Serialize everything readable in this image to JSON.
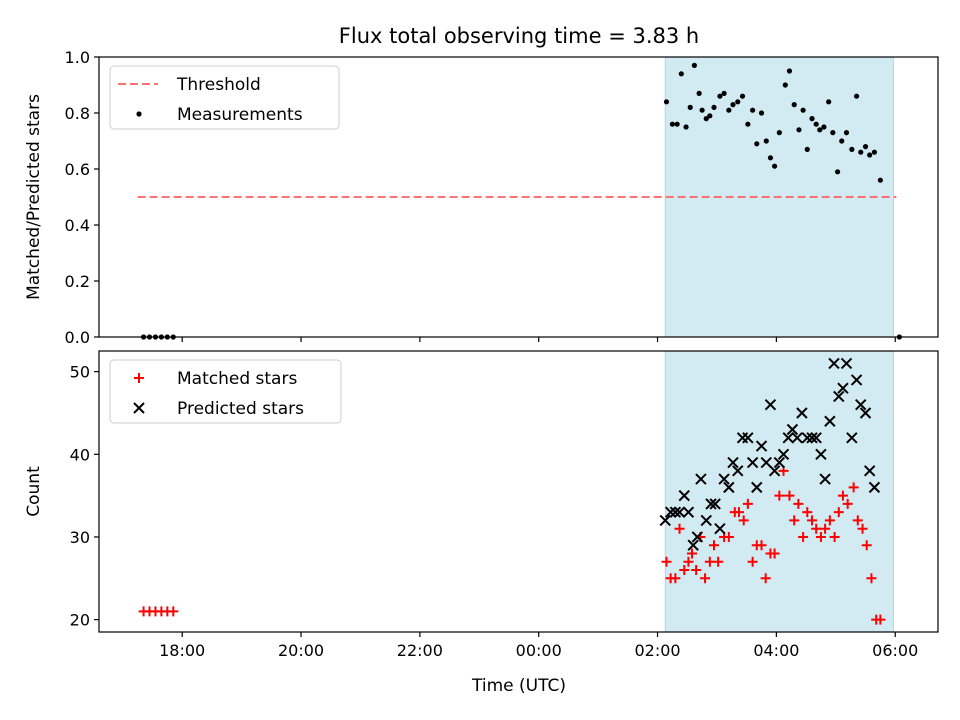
{
  "chart_data": {
    "type": "scatter",
    "title": "Flux total observing time = 3.83 h",
    "xlabel": "Time (UTC)",
    "x_ticks": [
      {
        "hour": 18,
        "label": "18:00"
      },
      {
        "hour": 20,
        "label": "20:00"
      },
      {
        "hour": 22,
        "label": "22:00"
      },
      {
        "hour": 24,
        "label": "00:00"
      },
      {
        "hour": 26,
        "label": "02:00"
      },
      {
        "hour": 28,
        "label": "04:00"
      },
      {
        "hour": 30,
        "label": "06:00"
      }
    ],
    "xlim": [
      16.6,
      30.72
    ],
    "shaded_interval": [
      26.13,
      29.97
    ],
    "shade_color": "#add8e6",
    "panels": [
      {
        "id": "top",
        "ylabel": "Matched/Predicted stars",
        "ylim": [
          0,
          1.0
        ],
        "yticks": [
          {
            "v": 0.0,
            "label": "0.0"
          },
          {
            "v": 0.2,
            "label": "0.2"
          },
          {
            "v": 0.4,
            "label": "0.4"
          },
          {
            "v": 0.6,
            "label": "0.6"
          },
          {
            "v": 0.8,
            "label": "0.8"
          },
          {
            "v": 1.0,
            "label": "1.0"
          }
        ],
        "threshold": {
          "name": "Threshold",
          "value": 0.5,
          "x_range": [
            17.25,
            30.02
          ],
          "color": "#ff7070"
        },
        "legend": [
          "Threshold",
          "Measurements"
        ],
        "series": [
          {
            "name": "Measurements",
            "marker": "dot",
            "color": "#000000",
            "points": [
              [
                17.35,
                0
              ],
              [
                17.45,
                0
              ],
              [
                17.55,
                0
              ],
              [
                17.65,
                0
              ],
              [
                17.75,
                0
              ],
              [
                17.85,
                0
              ],
              [
                26.15,
                0.84
              ],
              [
                26.25,
                0.76
              ],
              [
                26.33,
                0.76
              ],
              [
                26.4,
                0.94
              ],
              [
                26.48,
                0.75
              ],
              [
                26.55,
                0.82
              ],
              [
                26.62,
                0.97
              ],
              [
                26.7,
                0.87
              ],
              [
                26.75,
                0.81
              ],
              [
                26.82,
                0.78
              ],
              [
                26.88,
                0.79
              ],
              [
                26.95,
                0.82
              ],
              [
                27.05,
                0.86
              ],
              [
                27.12,
                0.87
              ],
              [
                27.2,
                0.81
              ],
              [
                27.27,
                0.83
              ],
              [
                27.35,
                0.84
              ],
              [
                27.43,
                0.86
              ],
              [
                27.52,
                0.76
              ],
              [
                27.6,
                0.81
              ],
              [
                27.67,
                0.69
              ],
              [
                27.75,
                0.8
              ],
              [
                27.83,
                0.7
              ],
              [
                27.9,
                0.64
              ],
              [
                27.97,
                0.61
              ],
              [
                28.05,
                0.73
              ],
              [
                28.15,
                0.9
              ],
              [
                28.22,
                0.95
              ],
              [
                28.3,
                0.83
              ],
              [
                28.38,
                0.74
              ],
              [
                28.45,
                0.81
              ],
              [
                28.52,
                0.67
              ],
              [
                28.6,
                0.78
              ],
              [
                28.67,
                0.76
              ],
              [
                28.73,
                0.74
              ],
              [
                28.8,
                0.75
              ],
              [
                28.88,
                0.84
              ],
              [
                28.95,
                0.73
              ],
              [
                29.03,
                0.59
              ],
              [
                29.1,
                0.7
              ],
              [
                29.18,
                0.73
              ],
              [
                29.27,
                0.67
              ],
              [
                29.35,
                0.86
              ],
              [
                29.42,
                0.66
              ],
              [
                29.5,
                0.68
              ],
              [
                29.57,
                0.65
              ],
              [
                29.65,
                0.66
              ],
              [
                29.75,
                0.56
              ],
              [
                30.07,
                0
              ]
            ]
          }
        ]
      },
      {
        "id": "bottom",
        "ylabel": "Count",
        "ylim": [
          18.5,
          52.5
        ],
        "yticks": [
          {
            "v": 20,
            "label": "20"
          },
          {
            "v": 30,
            "label": "30"
          },
          {
            "v": 40,
            "label": "40"
          },
          {
            "v": 50,
            "label": "50"
          }
        ],
        "legend": [
          "Matched stars",
          "Predicted stars"
        ],
        "series": [
          {
            "name": "Matched stars",
            "marker": "plus",
            "color": "#ff0000",
            "points": [
              [
                17.35,
                21
              ],
              [
                17.45,
                21
              ],
              [
                17.55,
                21
              ],
              [
                17.65,
                21
              ],
              [
                17.75,
                21
              ],
              [
                17.85,
                21
              ],
              [
                26.15,
                27
              ],
              [
                26.22,
                25
              ],
              [
                26.3,
                25
              ],
              [
                26.37,
                31
              ],
              [
                26.45,
                26
              ],
              [
                26.52,
                27
              ],
              [
                26.58,
                28
              ],
              [
                26.65,
                26
              ],
              [
                26.72,
                30
              ],
              [
                26.8,
                25
              ],
              [
                26.88,
                27
              ],
              [
                26.95,
                29
              ],
              [
                27.02,
                27
              ],
              [
                27.12,
                30
              ],
              [
                27.2,
                30
              ],
              [
                27.3,
                33
              ],
              [
                27.37,
                33
              ],
              [
                27.45,
                32
              ],
              [
                27.52,
                34
              ],
              [
                27.6,
                27
              ],
              [
                27.67,
                29
              ],
              [
                27.75,
                29
              ],
              [
                27.82,
                25
              ],
              [
                27.9,
                28
              ],
              [
                27.97,
                28
              ],
              [
                28.05,
                35
              ],
              [
                28.12,
                38
              ],
              [
                28.22,
                35
              ],
              [
                28.3,
                32
              ],
              [
                28.37,
                34
              ],
              [
                28.45,
                30
              ],
              [
                28.52,
                33
              ],
              [
                28.6,
                32
              ],
              [
                28.67,
                31
              ],
              [
                28.75,
                30
              ],
              [
                28.82,
                31
              ],
              [
                28.9,
                32
              ],
              [
                28.98,
                30
              ],
              [
                29.05,
                33
              ],
              [
                29.12,
                35
              ],
              [
                29.2,
                34
              ],
              [
                29.3,
                36
              ],
              [
                29.37,
                32
              ],
              [
                29.45,
                31
              ],
              [
                29.52,
                29
              ],
              [
                29.6,
                25
              ],
              [
                29.68,
                20
              ],
              [
                29.75,
                20
              ]
            ]
          },
          {
            "name": "Predicted stars",
            "marker": "x",
            "color": "#000000",
            "points": [
              [
                26.13,
                32
              ],
              [
                26.22,
                33
              ],
              [
                26.3,
                33
              ],
              [
                26.37,
                33
              ],
              [
                26.45,
                35
              ],
              [
                26.52,
                33
              ],
              [
                26.6,
                29
              ],
              [
                26.67,
                30
              ],
              [
                26.73,
                37
              ],
              [
                26.82,
                32
              ],
              [
                26.9,
                34
              ],
              [
                26.97,
                34
              ],
              [
                27.05,
                31
              ],
              [
                27.12,
                37
              ],
              [
                27.2,
                36
              ],
              [
                27.27,
                39
              ],
              [
                27.35,
                38
              ],
              [
                27.43,
                42
              ],
              [
                27.52,
                42
              ],
              [
                27.6,
                39
              ],
              [
                27.67,
                36
              ],
              [
                27.75,
                41
              ],
              [
                27.83,
                39
              ],
              [
                27.9,
                46
              ],
              [
                27.97,
                38
              ],
              [
                28.05,
                39
              ],
              [
                28.12,
                40
              ],
              [
                28.2,
                42
              ],
              [
                28.27,
                43
              ],
              [
                28.35,
                42
              ],
              [
                28.43,
                45
              ],
              [
                28.52,
                42
              ],
              [
                28.6,
                42
              ],
              [
                28.67,
                42
              ],
              [
                28.75,
                40
              ],
              [
                28.82,
                37
              ],
              [
                28.9,
                44
              ],
              [
                28.97,
                51
              ],
              [
                29.05,
                47
              ],
              [
                29.12,
                48
              ],
              [
                29.18,
                51
              ],
              [
                29.27,
                42
              ],
              [
                29.35,
                49
              ],
              [
                29.42,
                46
              ],
              [
                29.5,
                45
              ],
              [
                29.57,
                38
              ],
              [
                29.65,
                36
              ]
            ]
          }
        ]
      }
    ]
  }
}
